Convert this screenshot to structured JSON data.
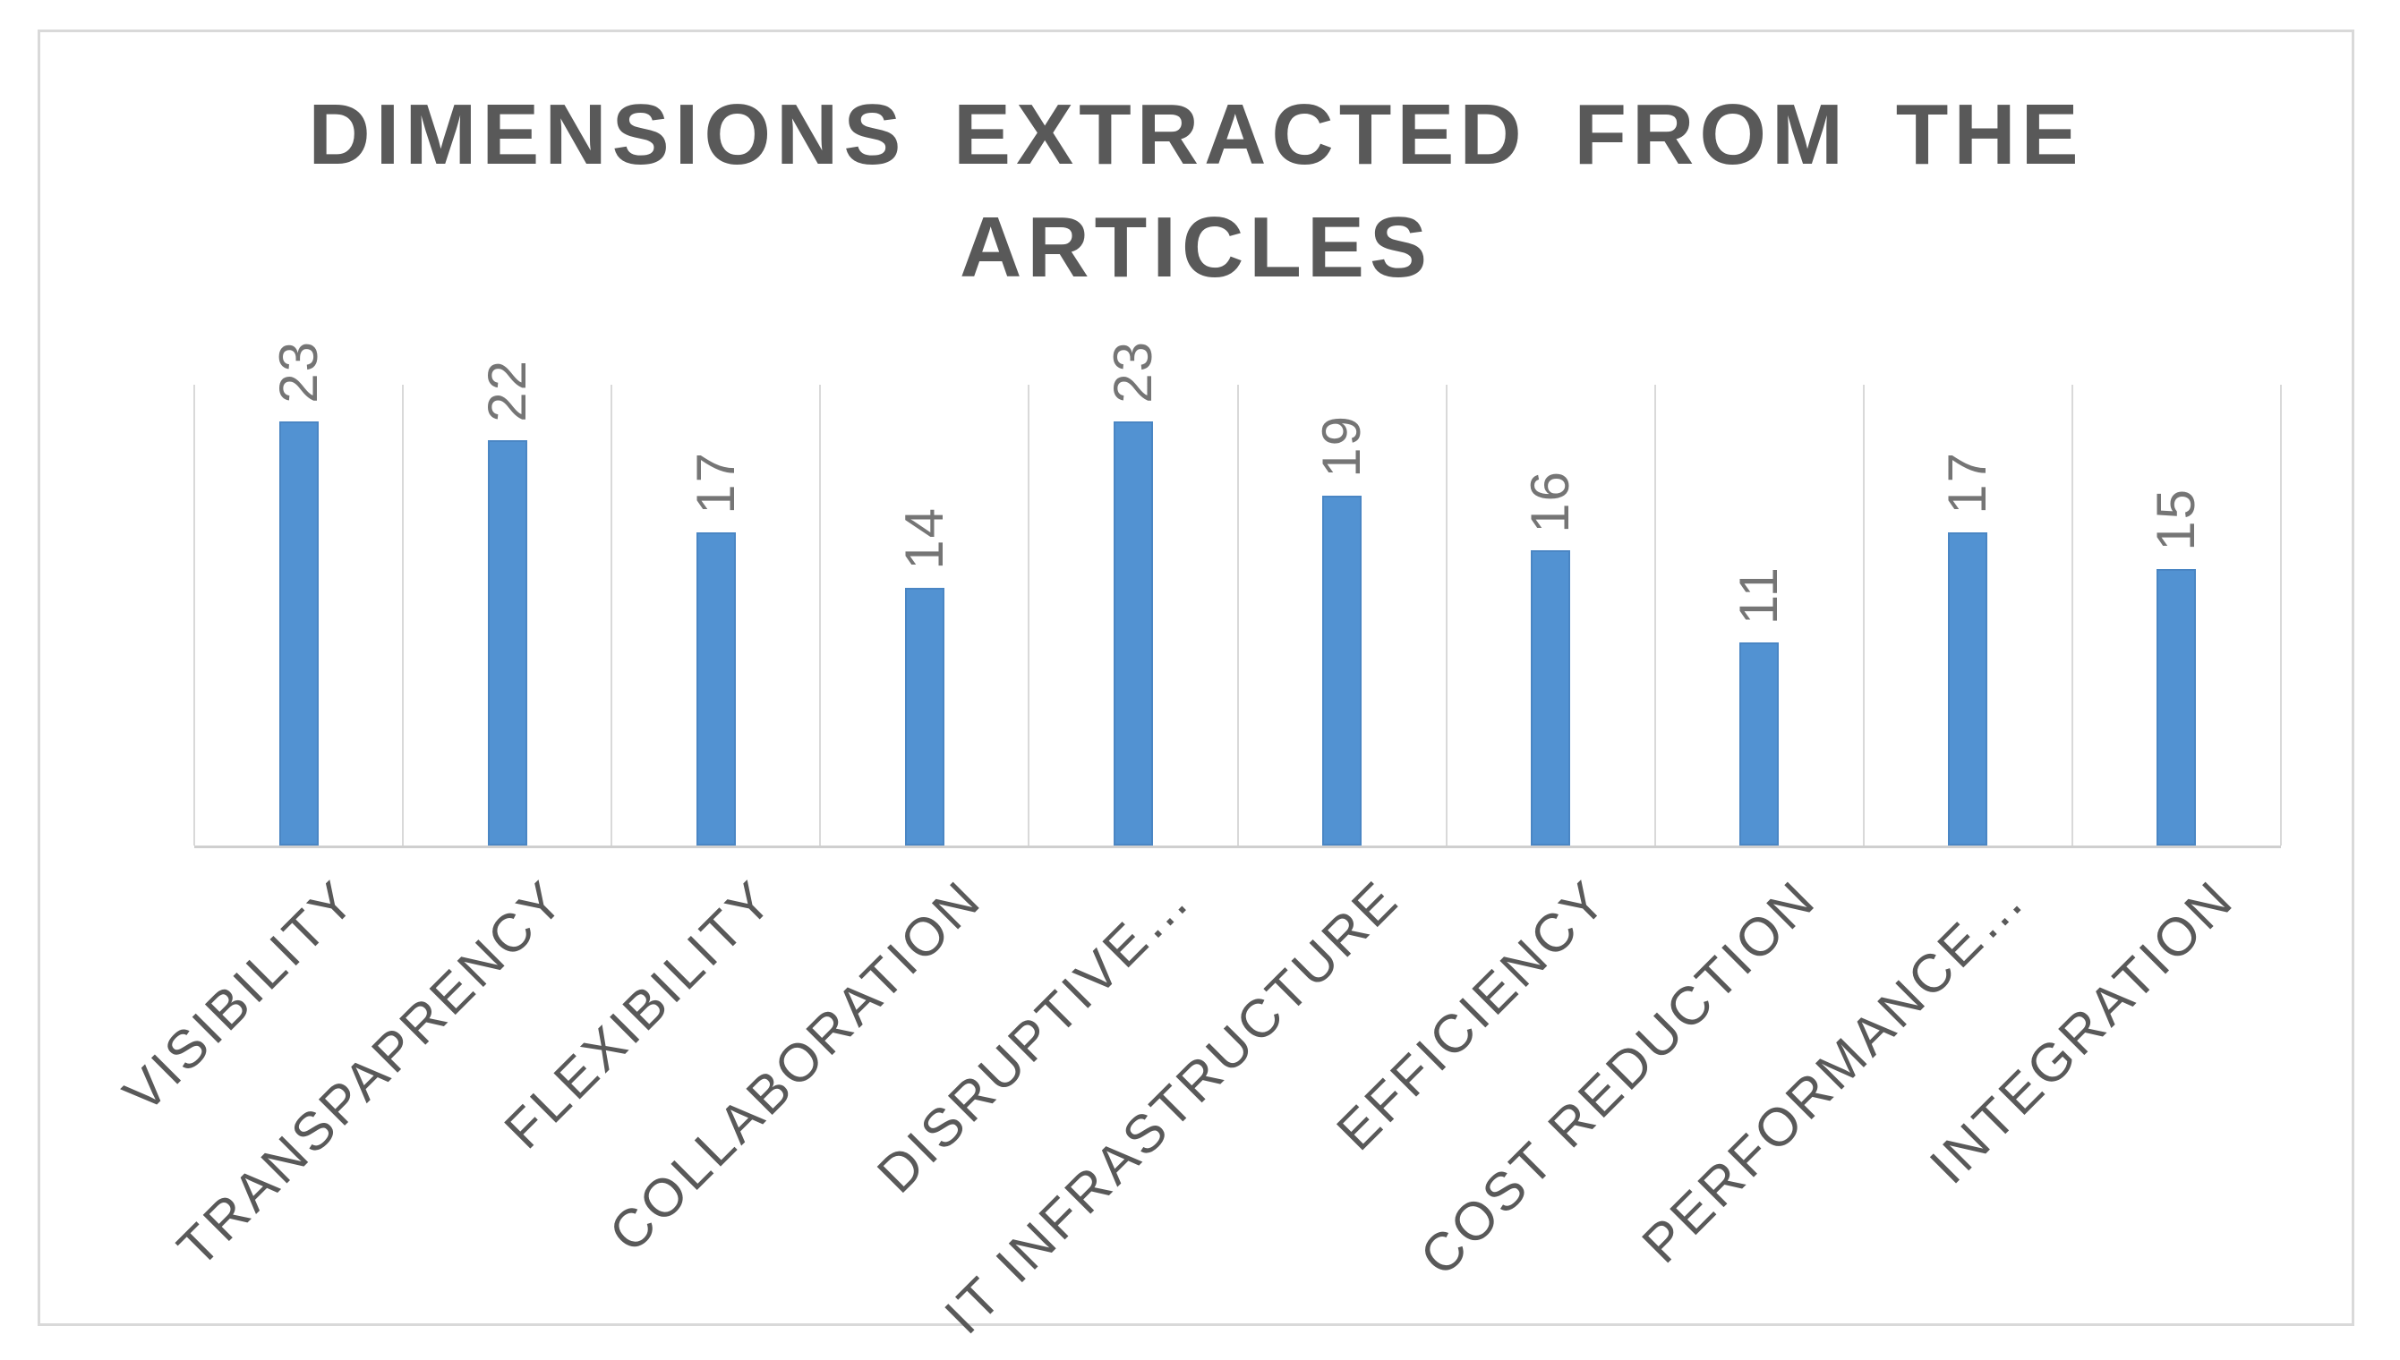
{
  "chart_data": {
    "type": "bar",
    "title": "DIMENSIONS EXTRACTED FROM THE ARTICLES",
    "categories": [
      "VISIBILITY",
      "TRANSPAPRENCY",
      "FLEXIBILITY",
      "COLLABORATION",
      "DISRUPTIVE…",
      "IT INFRASTRUCTURE",
      "EFFICIENCY",
      "COST REDUCTION",
      "PERFORMANCE…",
      "INTEGRATION"
    ],
    "values": [
      23,
      22,
      17,
      14,
      23,
      19,
      16,
      11,
      17,
      15
    ],
    "xlabel": "",
    "ylabel": "",
    "ylim": [
      0,
      25
    ],
    "grid": "vertical-category-boundaries-only",
    "legend_position": "none",
    "data_label_rotation_deg": -90,
    "category_label_rotation_deg": -45,
    "colors": {
      "bar_fill": "#5292D2",
      "bar_edge": "#4A86C4",
      "gridline": "#d9d9d9",
      "axis_line": "#cfcfcf",
      "chart_border": "#d9d9d9",
      "title_text": "#595959",
      "data_label_text": "#757575",
      "category_label_text": "#595959",
      "background": "#ffffff"
    }
  }
}
